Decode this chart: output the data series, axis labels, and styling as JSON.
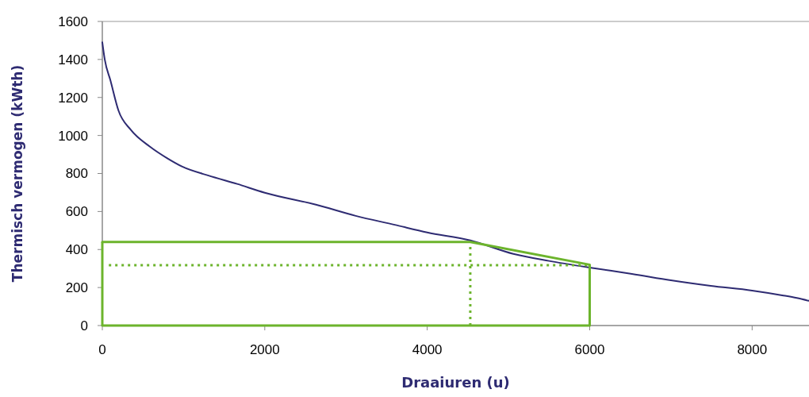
{
  "chart_data": {
    "type": "line",
    "xlabel": "Draaiuren (u)",
    "ylabel": "Thermisch vermogen (kWth)",
    "xlim": [
      0,
      8700
    ],
    "ylim": [
      0,
      1600
    ],
    "xticks": [
      0,
      2000,
      4000,
      6000,
      8000
    ],
    "yticks": [
      0,
      200,
      400,
      600,
      800,
      1000,
      1200,
      1400,
      1600
    ],
    "grid": false,
    "marker": "none",
    "ref_lines": [
      {
        "axis": "x",
        "value": 0,
        "color": "#6cb42c",
        "line_style": "solid"
      },
      {
        "axis": "x",
        "value": 4530,
        "color": "#6cb42c",
        "line_style": "dotted"
      },
      {
        "axis": "x",
        "value": 6000,
        "color": "#6cb42c",
        "line_style": "solid"
      }
    ],
    "series": [
      {
        "color": "#2e2b72",
        "line_style": "solid",
        "x": [
          0,
          30,
          100,
          200,
          350,
          590,
          800,
          980,
          1300,
          1660,
          2000,
          2630,
          3120,
          3600,
          4000,
          4530,
          5060,
          5500,
          6000,
          6520,
          7000,
          7490,
          8000,
          8370,
          8550,
          8700
        ],
        "values": [
          1490,
          1400,
          1290,
          1130,
          1030,
          940,
          880,
          837,
          790,
          745,
          699,
          636,
          577,
          530,
          490,
          448,
          377,
          340,
          305,
          272,
          238,
          209,
          184,
          159,
          145,
          130
        ]
      },
      {
        "color": "#6cb42c",
        "line_style": "solid",
        "x": [
          0,
          4530,
          6000
        ],
        "values": [
          440,
          440,
          320
        ]
      },
      {
        "color": "#6cb42c",
        "line_style": "solid",
        "x": [
          0,
          6000
        ],
        "values": [
          0,
          0
        ]
      },
      {
        "color": "#6cb42c",
        "line_style": "dotted",
        "x": [
          80,
          6000
        ],
        "values": [
          318,
          318
        ]
      }
    ]
  }
}
